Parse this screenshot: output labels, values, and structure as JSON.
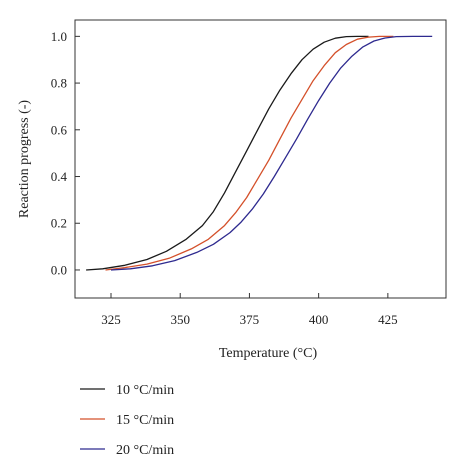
{
  "chart_data": {
    "type": "line",
    "xlabel": "Temperature (°C)",
    "ylabel": "Reaction progress (-)",
    "xlim": [
      312,
      446
    ],
    "ylim": [
      -0.12,
      1.07
    ],
    "xticks": [
      325,
      350,
      375,
      400,
      425
    ],
    "xtick_labels": [
      "325",
      "350",
      "375",
      "400",
      "425"
    ],
    "yticks": [
      0.0,
      0.2,
      0.4,
      0.6,
      0.8,
      1.0
    ],
    "ytick_labels": [
      "0.0",
      "0.2",
      "0.4",
      "0.6",
      "0.8",
      "1.0"
    ],
    "grid": false,
    "legend_position": "below",
    "series": [
      {
        "name": "10 °C/min",
        "color": "#1a1a1a",
        "x": [
          316,
          322,
          330,
          338,
          345,
          352,
          358,
          362,
          366,
          370,
          374,
          378,
          382,
          386,
          390,
          394,
          398,
          402,
          406,
          410,
          414,
          418
        ],
        "y": [
          0.0,
          0.005,
          0.02,
          0.045,
          0.08,
          0.13,
          0.19,
          0.25,
          0.33,
          0.42,
          0.51,
          0.6,
          0.69,
          0.77,
          0.84,
          0.9,
          0.945,
          0.975,
          0.992,
          0.999,
          1.0,
          1.0
        ]
      },
      {
        "name": "15 °C/min",
        "color": "#d4502a",
        "x": [
          323,
          330,
          338,
          346,
          354,
          360,
          366,
          370,
          374,
          378,
          382,
          386,
          390,
          394,
          398,
          402,
          406,
          410,
          414,
          418,
          422,
          427
        ],
        "y": [
          0.0,
          0.01,
          0.025,
          0.05,
          0.09,
          0.13,
          0.19,
          0.245,
          0.31,
          0.39,
          0.47,
          0.56,
          0.65,
          0.73,
          0.81,
          0.875,
          0.93,
          0.965,
          0.988,
          0.997,
          1.0,
          1.0
        ]
      },
      {
        "name": "20 °C/min",
        "color": "#2e2a8f",
        "x": [
          325,
          332,
          340,
          348,
          356,
          362,
          368,
          372,
          376,
          380,
          384,
          388,
          392,
          396,
          400,
          404,
          408,
          412,
          416,
          420,
          424,
          428,
          434,
          441
        ],
        "y": [
          0.0,
          0.005,
          0.018,
          0.04,
          0.075,
          0.11,
          0.16,
          0.205,
          0.26,
          0.325,
          0.4,
          0.48,
          0.56,
          0.645,
          0.725,
          0.8,
          0.865,
          0.915,
          0.955,
          0.98,
          0.993,
          0.999,
          1.0,
          1.0
        ]
      }
    ]
  }
}
